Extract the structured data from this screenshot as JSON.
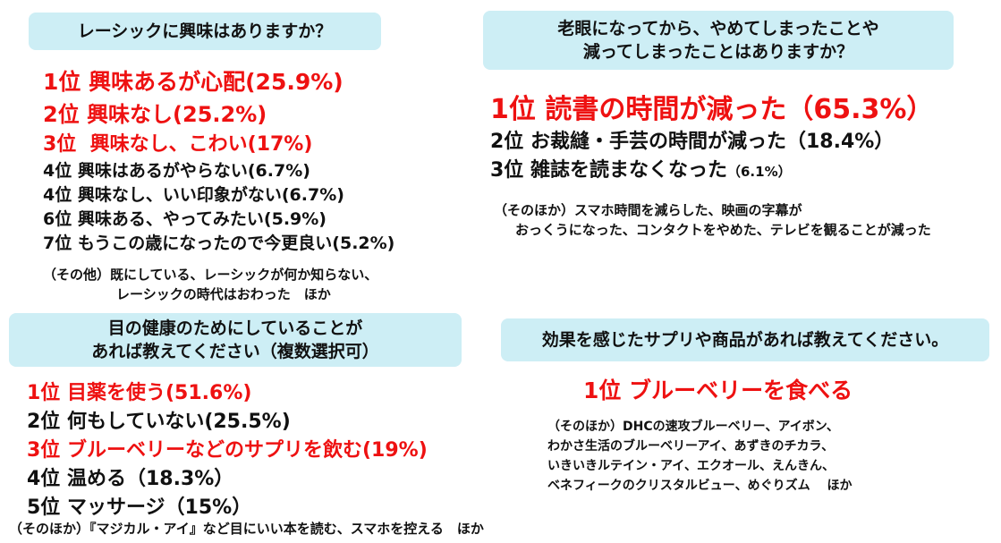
{
  "q1": {
    "title": "レーシックに興味はありますか？",
    "ranks": [
      {
        "rank": "1位",
        "text": "興味あるが心配(25.9%)"
      },
      {
        "rank": "2位",
        "text": "興味なし(25.2%)"
      },
      {
        "rank": "3位",
        "text": "興味なし、こわい(17%)"
      },
      {
        "rank": "4位",
        "text": "興味はあるがやらない(6.7%)"
      },
      {
        "rank": "4位",
        "text": "興味なし、いい印象がない(6.7%)"
      },
      {
        "rank": "6位",
        "text": "興味ある、やってみたい(5.9%)"
      },
      {
        "rank": "7位",
        "text": "もうこの歳になったので今更良い(5.2%)"
      }
    ],
    "other": [
      "（その他）既にしている、レーシックが何か知らない、",
      "レーシックの時代はおわった　ほか"
    ]
  },
  "q2": {
    "title_lines": [
      "老眼になってから、やめてしまったことや",
      "減ってしまったことはありますか？"
    ],
    "ranks": [
      {
        "rank": "1位",
        "text": "読書の時間が減った（65.3%）"
      },
      {
        "rank": "2位",
        "text": "お裁縫・手芸の時間が減った（18.4%）"
      },
      {
        "rank": "3位",
        "text": "雑誌を読まなくなった",
        "pct": "（6.1%）"
      }
    ],
    "other": [
      "（そのほか）スマホ時間を減らした、映画の字幕が",
      "おっくうになった、コンタクトをやめた、テレビを観ることが減った"
    ]
  },
  "q3": {
    "title_lines": [
      "目の健康のためにしていることが",
      "あれば教えてください（複数選択可）"
    ],
    "ranks": [
      {
        "rank": "1位",
        "text": "目薬を使う(51.6%)"
      },
      {
        "rank": "2位",
        "text": "何もしていない(25.5%)"
      },
      {
        "rank": "3位",
        "text": "ブルーベリーなどのサプリを飲む(19%)"
      },
      {
        "rank": "4位",
        "text": "温める（18.3%）"
      },
      {
        "rank": "5位",
        "text": "マッサージ（15%）"
      }
    ],
    "other": "（そのほか）『マジカル・アイ』など目にいい本を読む、スマホを控える　ほか"
  },
  "q4": {
    "title": "効果を感じたサプリや商品があれば教えてください。",
    "ranks": [
      {
        "rank": "1位",
        "text": "ブルーベリーを食べる"
      }
    ],
    "other": [
      "（そのほか）DHCの速攻ブルーベリー、アイボン、",
      "わかさ生活のブルーベリーアイ、あずきのチカラ、",
      "いきいきルテイン・アイ、エクオール、えんきん、",
      "ベネフィークのクリスタルビュー、めぐりズム　 ほか"
    ]
  },
  "colors": {
    "highlight": "#ee1111",
    "box": "#cdeef5",
    "text": "#111111"
  }
}
